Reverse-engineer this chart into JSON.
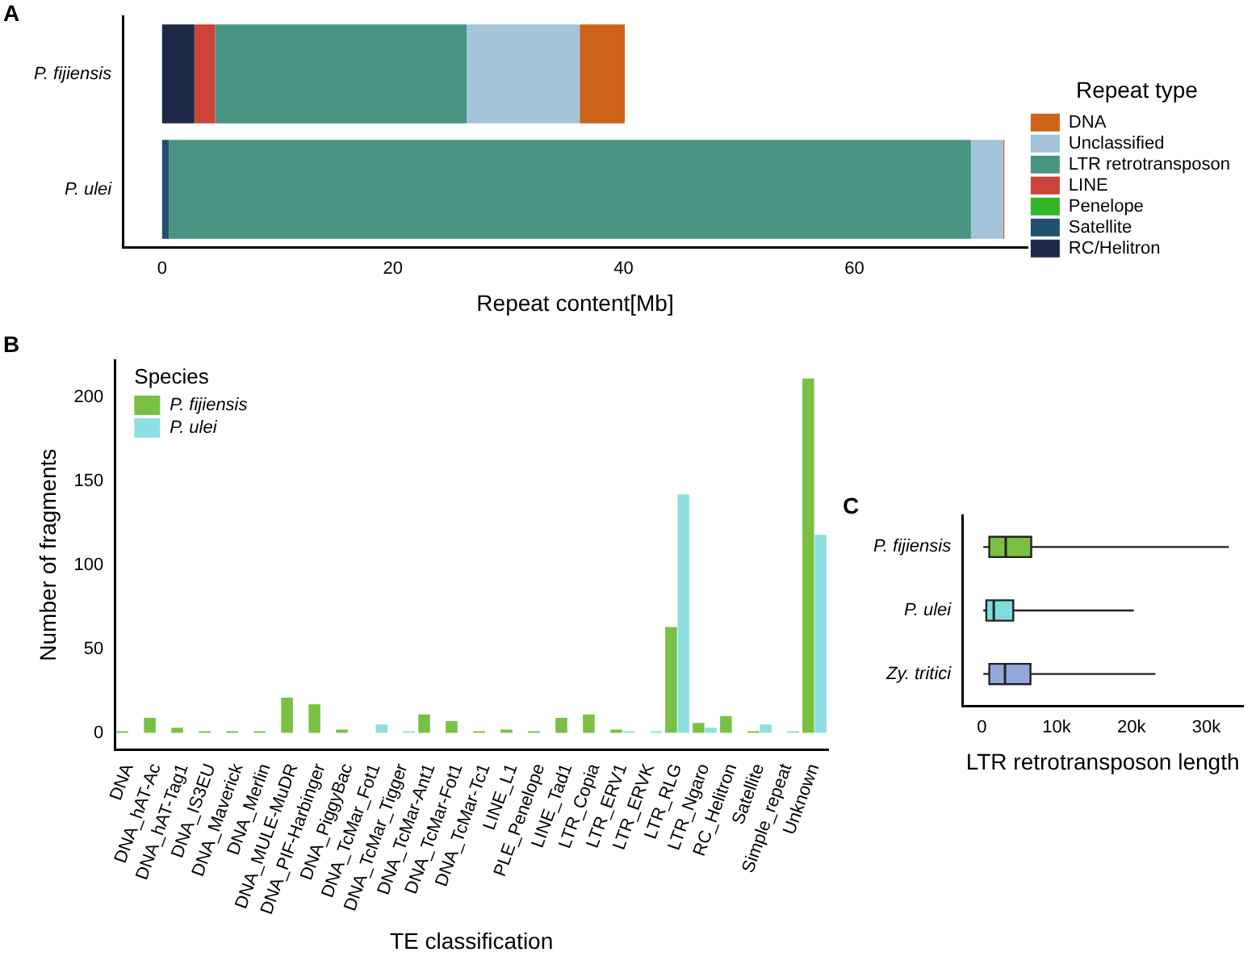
{
  "chart_data": [
    {
      "type": "bar",
      "orientation": "horizontal",
      "stacked": true,
      "annotations": [
        "A"
      ],
      "xlabel": "Repeat content[Mb]",
      "legend_title": "Repeat type",
      "legend": "right",
      "categories": [
        "P. fijiensis",
        "P. ulei"
      ],
      "xlim": [
        -3.4,
        75
      ],
      "xticks": [
        0,
        20,
        40,
        60
      ],
      "series": [
        {
          "name": "RC/Helitron",
          "color": "#1c2a48",
          "values": [
            2.8,
            0
          ]
        },
        {
          "name": "Satellite",
          "color": "#21506f",
          "values": [
            0,
            0.6
          ]
        },
        {
          "name": "Penelope",
          "color": "#33b52a",
          "values": [
            0,
            0
          ]
        },
        {
          "name": "LINE",
          "color": "#cc4439",
          "values": [
            1.8,
            0
          ]
        },
        {
          "name": "LTR retrotransposon",
          "color": "#479482",
          "values": [
            21.8,
            69.5
          ]
        },
        {
          "name": "Unclassified",
          "color": "#a3c4d9",
          "values": [
            9.8,
            2.8
          ]
        },
        {
          "name": "DNA",
          "color": "#cc6319",
          "values": [
            3.9,
            0.1
          ]
        }
      ]
    },
    {
      "type": "bar",
      "annotations": [
        "B"
      ],
      "xlabel": "TE classification",
      "ylabel": "Number of fragments",
      "legend_title": "Species",
      "legend": "top left",
      "ylim": [
        -10,
        222
      ],
      "yticks": [
        0,
        50,
        100,
        150,
        200
      ],
      "categories": [
        "DNA",
        "DNA_hAT-Ac",
        "DNA_hAT-Tag1",
        "DNA_IS3EU",
        "DNA_Maverick",
        "DNA_Merlin",
        "DNA_MULE-MuDR",
        "DNA_PIF-Harbinger",
        "DNA_PiggyBac",
        "DNA_TcMar_Fot1",
        "DNA_TcMar_Tigger",
        "DNA_TcMar-Ant1",
        "DNA_TcMar-Fot1",
        "DNA_TcMar-Tc1",
        "LINE_L1",
        "PLE_Penelope",
        "LINE_Tad1",
        "LTR_Copia",
        "LTR_ERV1",
        "LTR_ERVK",
        "LTR_RLG",
        "LTR_Ngaro",
        "RC_Helitron",
        "Satellite",
        "Simple_repeat",
        "Unknown"
      ],
      "series": [
        {
          "name": "P. fijiensis",
          "color": "#7ac143",
          "values": [
            1,
            9,
            3,
            1,
            1,
            1,
            21,
            17,
            2,
            0,
            0,
            11,
            7,
            1,
            2,
            1,
            9,
            11,
            2,
            0,
            63,
            6,
            10,
            1,
            0,
            211
          ]
        },
        {
          "name": "P. ulei",
          "color": "#8ee0e0",
          "values": [
            0,
            0,
            0,
            0,
            0,
            0,
            0,
            0,
            0,
            5,
            1,
            0,
            0,
            0,
            0,
            0,
            0,
            0,
            1,
            1,
            142,
            3,
            0,
            5,
            1,
            118
          ]
        }
      ]
    },
    {
      "type": "box",
      "orientation": "horizontal",
      "annotations": [
        "C"
      ],
      "xlabel": "LTR retrotransposon length",
      "categories": [
        "P. fijiensis",
        "P. ulei",
        "Zy. tritici"
      ],
      "colors": [
        "#7ac143",
        "#7fdcdc",
        "#93a9dc"
      ],
      "xlim": [
        -2600,
        34900
      ],
      "xticks": [
        0,
        {
          "value": 10000,
          "label": "10k"
        },
        {
          "value": 20000,
          "label": "20k"
        },
        {
          "value": 30000,
          "label": "30k"
        }
      ],
      "boxes": [
        {
          "low": 200,
          "q1": 1000,
          "median": 3200,
          "q3": 6600,
          "high": 33000
        },
        {
          "low": 200,
          "q1": 600,
          "median": 1600,
          "q3": 4200,
          "high": 20300
        },
        {
          "low": 200,
          "q1": 1000,
          "median": 3100,
          "q3": 6500,
          "high": 23200
        }
      ]
    }
  ]
}
